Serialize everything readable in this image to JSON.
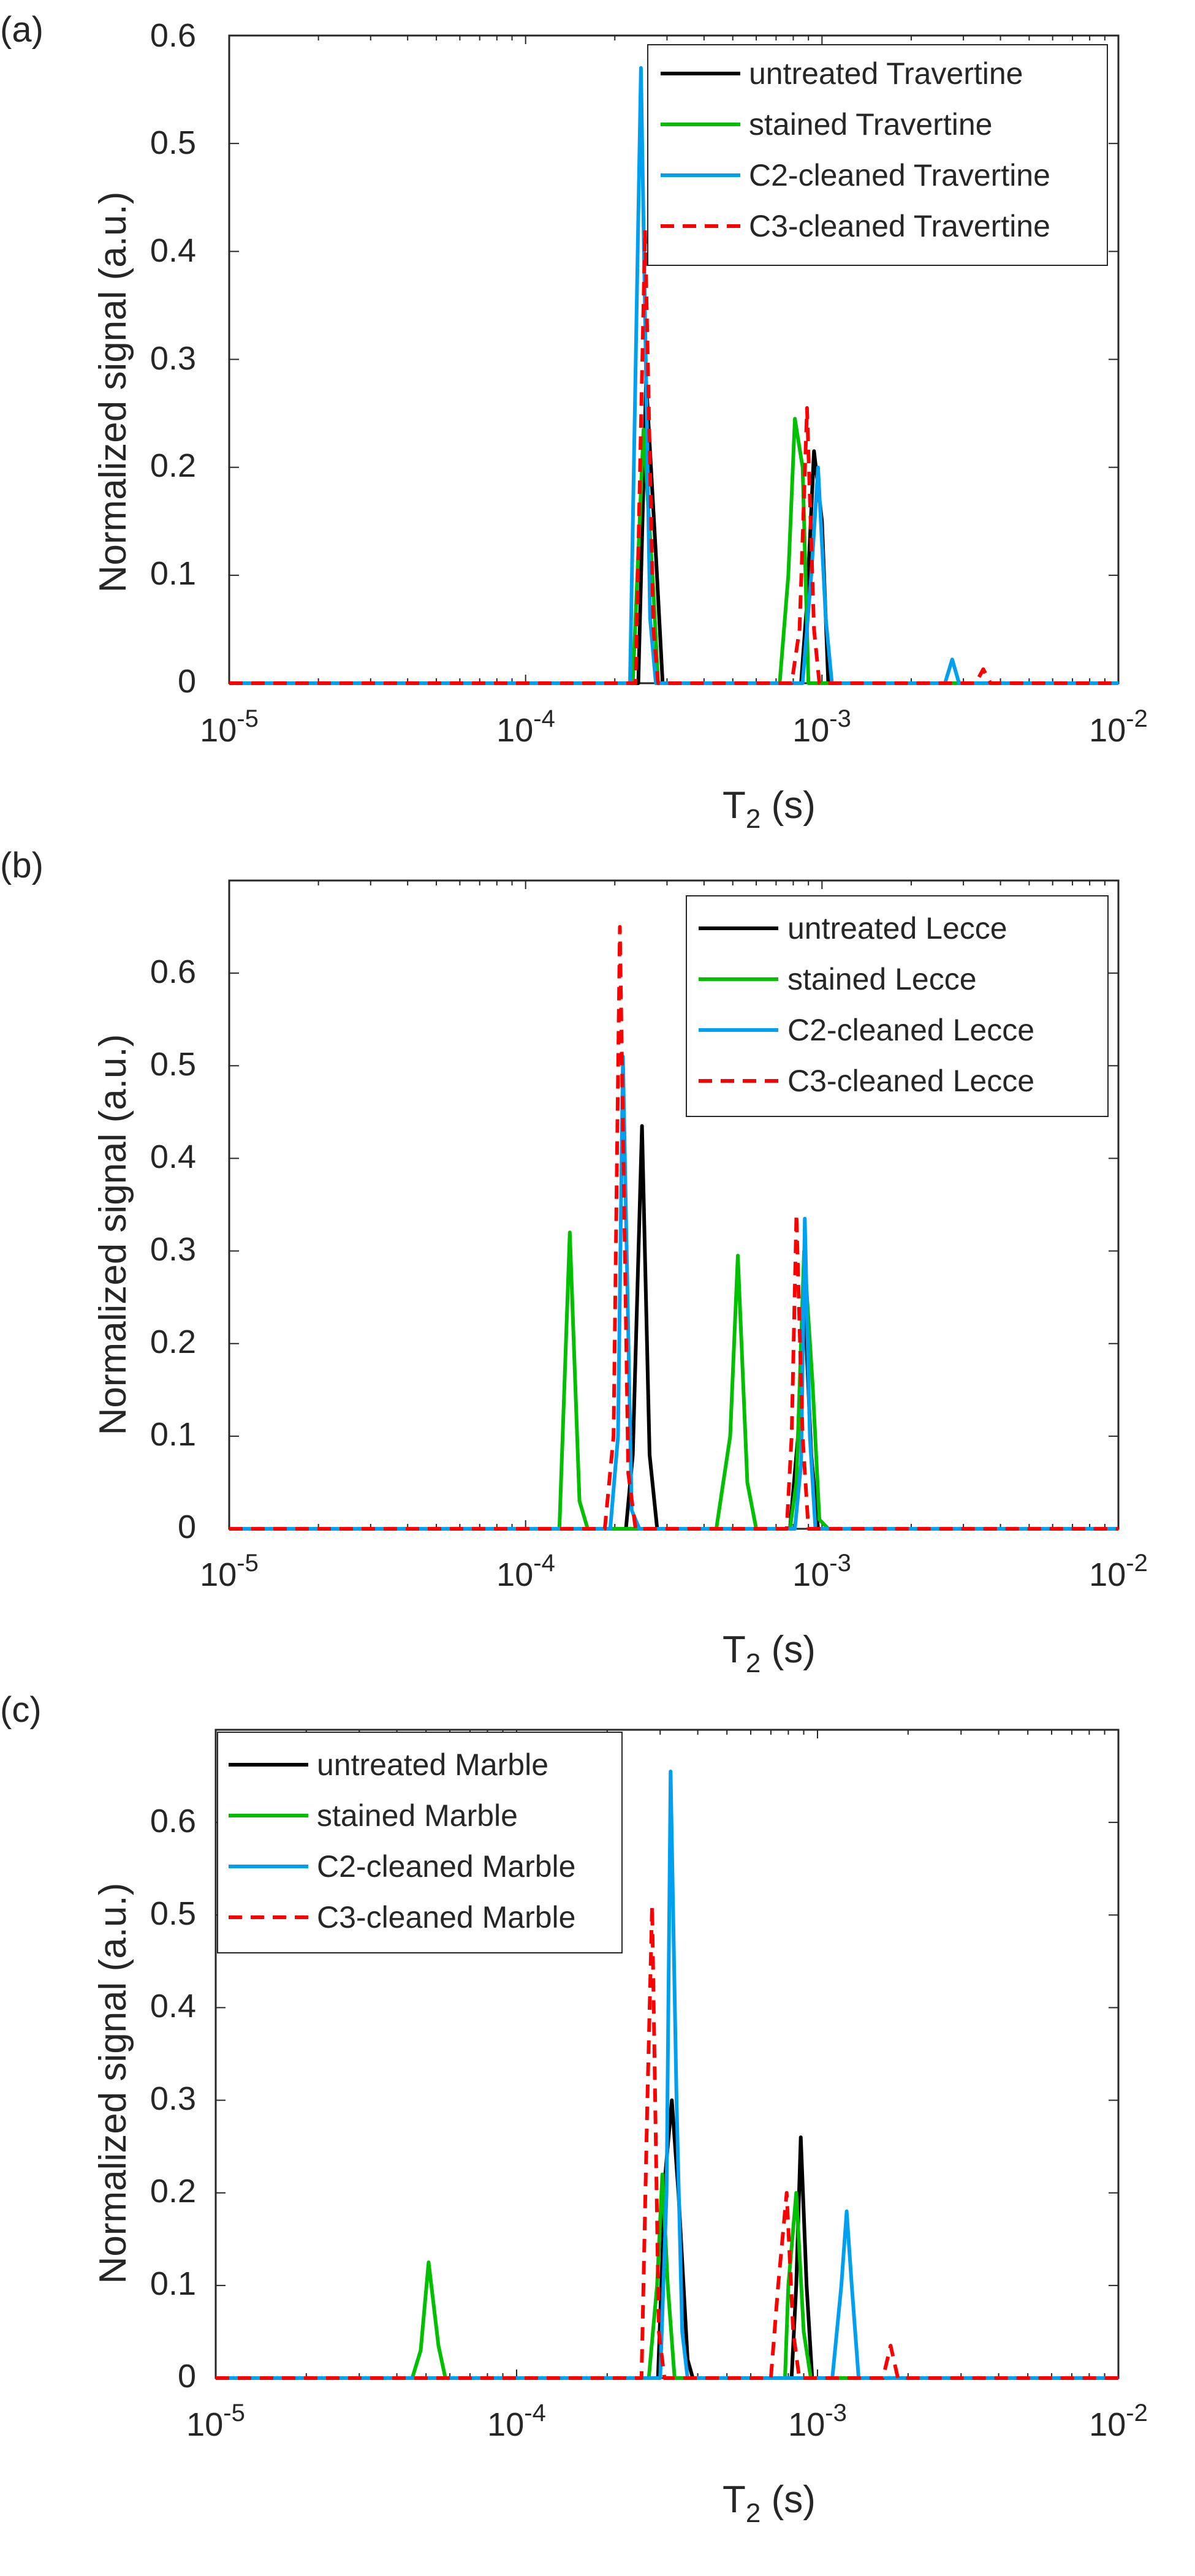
{
  "chart_data": [
    {
      "panel_label": "(a)",
      "type": "line",
      "xscale": "log",
      "xlim": [
        1e-05,
        0.01
      ],
      "ylim": [
        0,
        0.6
      ],
      "xlabel": "T2 (s)",
      "xlabel_main": "T",
      "xlabel_sub": "2",
      "xlabel_unit": " (s)",
      "ylabel": "Normalized signal (a.u.)",
      "xtick_exponents": [
        "-5",
        "-4",
        "-3",
        "-2"
      ],
      "xtick_base": "10",
      "yticks": [
        0,
        0.1,
        0.2,
        0.3,
        0.4,
        0.5,
        0.6
      ],
      "ytick_labels": [
        "0",
        "0.1",
        "0.2",
        "0.3",
        "0.4",
        "0.5",
        "0.6"
      ],
      "legend_position": "top-right",
      "series": [
        {
          "name": "untreated Travertine",
          "color": "#000000",
          "dash": "solid",
          "points": [
            [
              1e-05,
              0
            ],
            [
              0.00024,
              0
            ],
            [
              0.000255,
              0.28
            ],
            [
              0.000275,
              0.12
            ],
            [
              0.00029,
              0
            ],
            [
              0.00085,
              0
            ],
            [
              0.00089,
              0.075
            ],
            [
              0.00094,
              0.215
            ],
            [
              0.001,
              0.15
            ],
            [
              0.00105,
              0
            ],
            [
              0.01,
              0
            ]
          ]
        },
        {
          "name": "stained Travertine",
          "color": "#00C000",
          "dash": "solid",
          "points": [
            [
              1e-05,
              0
            ],
            [
              0.00023,
              0
            ],
            [
              0.00025,
              0.235
            ],
            [
              0.00027,
              0.085
            ],
            [
              0.00028,
              0
            ],
            [
              0.00072,
              0
            ],
            [
              0.00077,
              0.1
            ],
            [
              0.00081,
              0.245
            ],
            [
              0.00086,
              0.2
            ],
            [
              0.0009,
              0
            ],
            [
              0.01,
              0
            ]
          ]
        },
        {
          "name": "C2-cleaned Travertine",
          "color": "#00A0F0",
          "dash": "solid",
          "points": [
            [
              1e-05,
              0
            ],
            [
              0.000225,
              0
            ],
            [
              0.000245,
              0.57
            ],
            [
              0.000263,
              0.06
            ],
            [
              0.000275,
              0
            ],
            [
              0.00086,
              0
            ],
            [
              0.00092,
              0.1
            ],
            [
              0.00097,
              0.2
            ],
            [
              0.00103,
              0.06
            ],
            [
              0.00108,
              0
            ],
            [
              0.0026,
              0
            ],
            [
              0.00275,
              0.022
            ],
            [
              0.0029,
              0
            ],
            [
              0.01,
              0
            ]
          ]
        },
        {
          "name": "C3-cleaned Travertine",
          "color": "#FF0000",
          "dash": "dashed",
          "points": [
            [
              1e-05,
              0
            ],
            [
              0.000235,
              0
            ],
            [
              0.000253,
              0.42
            ],
            [
              0.00027,
              0.05
            ],
            [
              0.00028,
              0
            ],
            [
              0.00079,
              0
            ],
            [
              0.00084,
              0.05
            ],
            [
              0.00089,
              0.255
            ],
            [
              0.00094,
              0.05
            ],
            [
              0.00098,
              0
            ],
            [
              0.0033,
              0
            ],
            [
              0.0035,
              0.013
            ],
            [
              0.0037,
              0
            ],
            [
              0.01,
              0
            ]
          ]
        }
      ],
      "legend": [
        {
          "label": "untreated Travertine",
          "color": "#000000",
          "dash": "solid"
        },
        {
          "label": "stained Travertine",
          "color": "#00C000",
          "dash": "solid"
        },
        {
          "label": "C2-cleaned Travertine",
          "color": "#00A0F0",
          "dash": "solid"
        },
        {
          "label": "C3-cleaned Travertine",
          "color": "#FF0000",
          "dash": "dashed"
        }
      ]
    },
    {
      "panel_label": "(b)",
      "type": "line",
      "xscale": "log",
      "xlim": [
        1e-05,
        0.01
      ],
      "ylim": [
        0,
        0.7
      ],
      "xlabel": "T2 (s)",
      "xlabel_main": "T",
      "xlabel_sub": "2",
      "xlabel_unit": " (s)",
      "ylabel": "Normalized signal (a.u.)",
      "xtick_exponents": [
        "-5",
        "-4",
        "-3",
        "-2"
      ],
      "xtick_base": "10",
      "yticks": [
        0,
        0.1,
        0.2,
        0.3,
        0.4,
        0.5,
        0.6
      ],
      "ytick_labels": [
        "0",
        "0.1",
        "0.2",
        "0.3",
        "0.4",
        "0.5",
        "0.6"
      ],
      "legend_position": "top-right",
      "series": [
        {
          "name": "untreated Lecce",
          "color": "#000000",
          "dash": "solid",
          "points": [
            [
              1e-05,
              0
            ],
            [
              0.000218,
              0
            ],
            [
              0.00023,
              0.08
            ],
            [
              0.000247,
              0.435
            ],
            [
              0.000262,
              0.08
            ],
            [
              0.000278,
              0
            ],
            [
              0.00078,
              0
            ],
            [
              0.00083,
              0.1
            ],
            [
              0.00087,
              0.26
            ],
            [
              0.00092,
              0.08
            ],
            [
              0.00097,
              0
            ],
            [
              0.01,
              0
            ]
          ]
        },
        {
          "name": "stained Lecce",
          "color": "#00C000",
          "dash": "solid",
          "points": [
            [
              1e-05,
              0
            ],
            [
              0.00013,
              0
            ],
            [
              0.000141,
              0.32
            ],
            [
              0.000152,
              0.03
            ],
            [
              0.000162,
              0
            ],
            [
              0.00044,
              0
            ],
            [
              0.00049,
              0.1
            ],
            [
              0.00052,
              0.295
            ],
            [
              0.00056,
              0.05
            ],
            [
              0.0006,
              0
            ],
            [
              0.00078,
              0
            ],
            [
              0.00082,
              0.05
            ],
            [
              0.00087,
              0.3
            ],
            [
              0.00093,
              0.155
            ],
            [
              0.00098,
              0.01
            ],
            [
              0.00105,
              0
            ],
            [
              0.01,
              0
            ]
          ]
        },
        {
          "name": "C2-cleaned Lecce",
          "color": "#00A0F0",
          "dash": "solid",
          "points": [
            [
              1e-05,
              0
            ],
            [
              0.000193,
              0
            ],
            [
              0.000205,
              0.1
            ],
            [
              0.000213,
              0.51
            ],
            [
              0.000228,
              0.02
            ],
            [
              0.000242,
              0
            ],
            [
              0.00081,
              0
            ],
            [
              0.00085,
              0.07
            ],
            [
              0.000875,
              0.335
            ],
            [
              0.00091,
              0.1
            ],
            [
              0.00095,
              0
            ],
            [
              0.01,
              0
            ]
          ]
        },
        {
          "name": "C3-cleaned Lecce",
          "color": "#FF0000",
          "dash": "dashed",
          "points": [
            [
              1e-05,
              0
            ],
            [
              0.000185,
              0
            ],
            [
              0.000198,
              0.1
            ],
            [
              0.000208,
              0.65
            ],
            [
              0.000222,
              0.06
            ],
            [
              0.000235,
              0
            ],
            [
              0.00076,
              0
            ],
            [
              0.00079,
              0.1
            ],
            [
              0.00082,
              0.34
            ],
            [
              0.00086,
              0.1
            ],
            [
              0.0009,
              0
            ],
            [
              0.01,
              0
            ]
          ]
        }
      ],
      "legend": [
        {
          "label": "untreated Lecce",
          "color": "#000000",
          "dash": "solid"
        },
        {
          "label": "stained Lecce",
          "color": "#00C000",
          "dash": "solid"
        },
        {
          "label": "C2-cleaned Lecce",
          "color": "#00A0F0",
          "dash": "solid"
        },
        {
          "label": "C3-cleaned Lecce",
          "color": "#FF0000",
          "dash": "dashed"
        }
      ]
    },
    {
      "panel_label": "(c)",
      "type": "line",
      "xscale": "log",
      "xlim": [
        1e-05,
        0.01
      ],
      "ylim": [
        0,
        0.7
      ],
      "xlabel": "T2 (s)",
      "xlabel_main": "T",
      "xlabel_sub": "2",
      "xlabel_unit": " (s)",
      "ylabel": "Normalized signal (a.u.)",
      "xtick_exponents": [
        "-5",
        "-4",
        "-3",
        "-2"
      ],
      "xtick_base": "10",
      "yticks": [
        0,
        0.1,
        0.2,
        0.3,
        0.4,
        0.5,
        0.6
      ],
      "ytick_labels": [
        "0",
        "0.1",
        "0.2",
        "0.3",
        "0.4",
        "0.5",
        "0.6"
      ],
      "legend_position": "top-left",
      "series": [
        {
          "name": "untreated Marble",
          "color": "#000000",
          "dash": "solid",
          "points": [
            [
              1e-05,
              0
            ],
            [
              0.000295,
              0
            ],
            [
              0.000312,
              0.22
            ],
            [
              0.000328,
              0.3
            ],
            [
              0.000345,
              0.2
            ],
            [
              0.00037,
              0.02
            ],
            [
              0.000385,
              0
            ],
            [
              0.00082,
              0
            ],
            [
              0.00085,
              0.1
            ],
            [
              0.00088,
              0.26
            ],
            [
              0.00092,
              0.1
            ],
            [
              0.00096,
              0
            ],
            [
              0.01,
              0
            ]
          ]
        },
        {
          "name": "stained Marble",
          "color": "#00C000",
          "dash": "solid",
          "points": [
            [
              1e-05,
              0
            ],
            [
              4.5e-05,
              0
            ],
            [
              4.8e-05,
              0.03
            ],
            [
              5.1e-05,
              0.125
            ],
            [
              5.5e-05,
              0.035
            ],
            [
              5.8e-05,
              0
            ],
            [
              0.000275,
              0
            ],
            [
              0.000293,
              0.1
            ],
            [
              0.000305,
              0.22
            ],
            [
              0.000318,
              0.1
            ],
            [
              0.000335,
              0
            ],
            [
              0.00078,
              0
            ],
            [
              0.0008,
              0.1
            ],
            [
              0.00085,
              0.2
            ],
            [
              0.0009,
              0.05
            ],
            [
              0.00095,
              0
            ],
            [
              0.01,
              0
            ]
          ]
        },
        {
          "name": "C2-cleaned Marble",
          "color": "#00A0F0",
          "dash": "solid",
          "points": [
            [
              1e-05,
              0
            ],
            [
              0.0003,
              0
            ],
            [
              0.000315,
              0.2
            ],
            [
              0.000325,
              0.655
            ],
            [
              0.00034,
              0.3
            ],
            [
              0.000355,
              0.05
            ],
            [
              0.00037,
              0
            ],
            [
              0.00112,
              0
            ],
            [
              0.0012,
              0.1
            ],
            [
              0.00125,
              0.18
            ],
            [
              0.0013,
              0.1
            ],
            [
              0.00137,
              0
            ],
            [
              0.01,
              0
            ]
          ]
        },
        {
          "name": "C3-cleaned Marble",
          "color": "#FF0000",
          "dash": "dashed",
          "points": [
            [
              1e-05,
              0
            ],
            [
              0.00026,
              0
            ],
            [
              0.000272,
              0.3
            ],
            [
              0.000282,
              0.51
            ],
            [
              0.000297,
              0.05
            ],
            [
              0.00031,
              0
            ],
            [
              0.0007,
              0
            ],
            [
              0.00074,
              0.1
            ],
            [
              0.00079,
              0.2
            ],
            [
              0.00083,
              0.05
            ],
            [
              0.00087,
              0
            ],
            [
              0.00165,
              0
            ],
            [
              0.00175,
              0.035
            ],
            [
              0.00185,
              0
            ],
            [
              0.01,
              0
            ]
          ]
        }
      ],
      "legend": [
        {
          "label": "untreated Marble",
          "color": "#000000",
          "dash": "solid"
        },
        {
          "label": "stained Marble",
          "color": "#00C000",
          "dash": "solid"
        },
        {
          "label": "C2-cleaned Marble",
          "color": "#00A0F0",
          "dash": "solid"
        },
        {
          "label": "C3-cleaned Marble",
          "color": "#FF0000",
          "dash": "dashed"
        }
      ]
    }
  ]
}
